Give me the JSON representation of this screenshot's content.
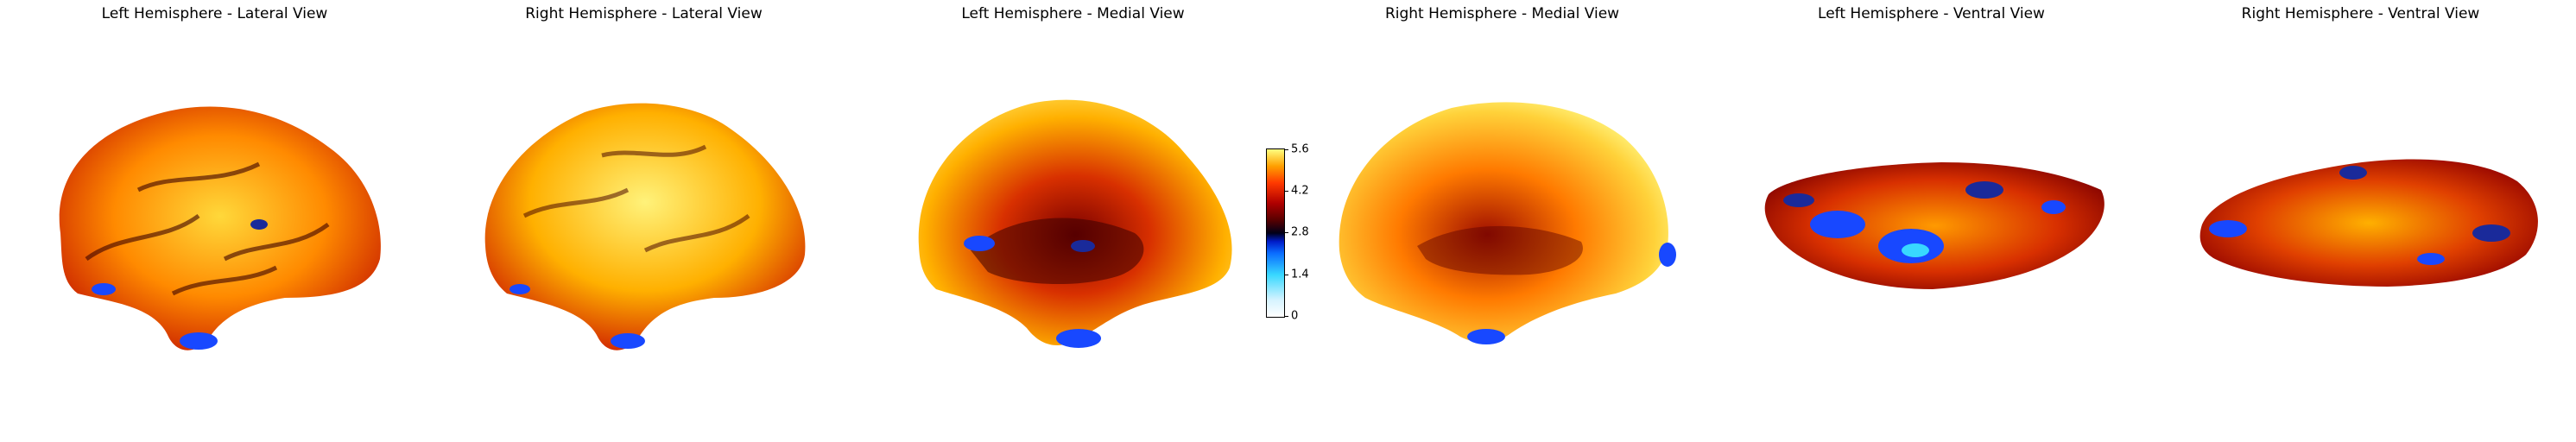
{
  "panels": [
    {
      "title": "Left Hemisphere - Lateral View"
    },
    {
      "title": "Right Hemisphere - Lateral View"
    },
    {
      "title": "Left Hemisphere - Medial View"
    },
    {
      "title": "Right Hemisphere - Medial View"
    },
    {
      "title": "Left Hemisphere - Ventral View"
    },
    {
      "title": "Right Hemisphere - Ventral View"
    }
  ],
  "colorbar": {
    "ticks": [
      "0",
      "1.4",
      "2.8",
      "4.2",
      "5.6"
    ],
    "colormap": "cold_hot",
    "colors": {
      "low": "#ffffff",
      "mid_cold": "#0a6cff",
      "center": "#000018",
      "mid_hot": "#b00000",
      "high": "#ffff80"
    }
  }
}
